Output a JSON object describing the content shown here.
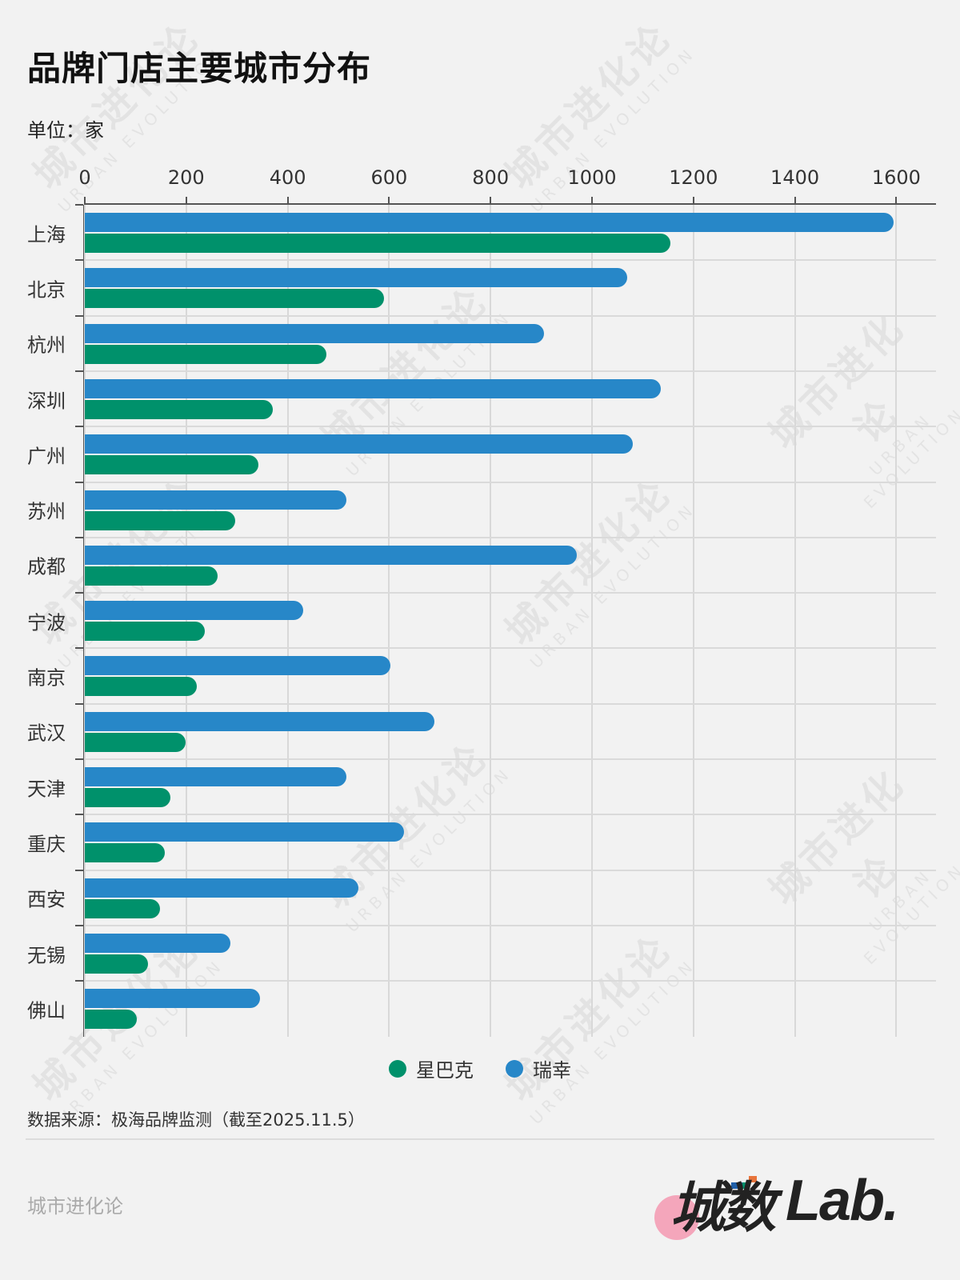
{
  "header": {
    "title": "品牌门店主要城市分布",
    "unit": "单位：家"
  },
  "colors": {
    "luckin": "#2787c8",
    "starbucks": "#00916b",
    "background": "#f2f2f2"
  },
  "legend": {
    "items": [
      {
        "label": "星巴克",
        "color": "#00916b"
      },
      {
        "label": "瑞幸",
        "color": "#2787c8"
      }
    ]
  },
  "footer": {
    "source": "数据来源：极海品牌监测（截至2025.11.5）",
    "brand": "城市进化论",
    "logo_cn": "城数",
    "logo_en": "Lab."
  },
  "watermark": {
    "cn": "城市进化论",
    "en": "URBAN EVOLUTION"
  },
  "chart_data": {
    "type": "bar",
    "orientation": "horizontal",
    "title": "品牌门店主要城市分布",
    "subtitle": "单位：家",
    "xlabel": "",
    "ylabel": "",
    "xlim": [
      0,
      1600
    ],
    "xticks": [
      0,
      200,
      400,
      600,
      800,
      1000,
      1200,
      1400,
      1600
    ],
    "xtick_labels": [
      "0",
      "200",
      "400",
      "600",
      "800",
      "1000",
      "1200",
      "1400",
      "1600"
    ],
    "grid": true,
    "legend_position": "bottom",
    "categories": [
      "上海",
      "北京",
      "杭州",
      "深圳",
      "广州",
      "苏州",
      "成都",
      "宁波",
      "南京",
      "武汉",
      "天津",
      "重庆",
      "西安",
      "无锡",
      "佛山"
    ],
    "series": [
      {
        "name": "瑞幸",
        "color": "#2787c8",
        "values": [
          1595,
          1070,
          905,
          1135,
          1081,
          515,
          970,
          431,
          603,
          690,
          516,
          630,
          539,
          287,
          345
        ]
      },
      {
        "name": "星巴克",
        "color": "#00916b",
        "values": [
          1155,
          590,
          476,
          371,
          343,
          297,
          262,
          237,
          221,
          198,
          169,
          158,
          149,
          125,
          103
        ]
      }
    ],
    "source": "数据来源：极海品牌监测（截至2025.11.5）"
  }
}
